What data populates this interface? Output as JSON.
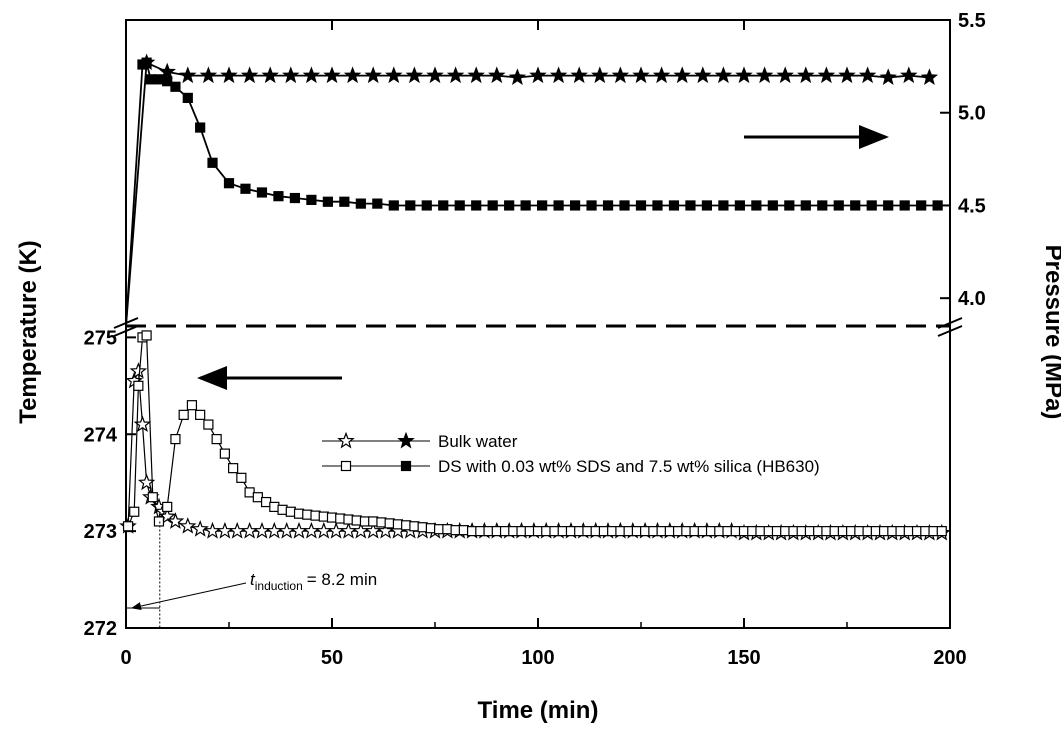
{
  "chart_data": {
    "type": "line",
    "xlabel": "Time (min)",
    "ylabel_left": "Temperature (K)",
    "ylabel_right": "Pressure (MPa)",
    "xlim": [
      0,
      200
    ],
    "x_ticks": [
      "0",
      "50",
      "100",
      "150",
      "200"
    ],
    "temperature_axis": {
      "range": [
        272,
        275.2
      ],
      "ticks": [
        "272",
        "273",
        "274",
        "275"
      ]
    },
    "pressure_axis": {
      "range": [
        3.85,
        5.5
      ],
      "ticks": [
        "4.0",
        "4.5",
        "5.0",
        "5.5"
      ]
    },
    "legend_position": "center-right",
    "legend": [
      {
        "label": "Bulk water"
      },
      {
        "label": "DS with 0.03 wt% SDS and 7.5 wt% silica (HB630)"
      }
    ],
    "series": [
      {
        "name": "Bulk water",
        "quantity": "temperature",
        "marker": "star-open",
        "x": [
          0.5,
          2,
          3,
          4,
          5,
          6,
          8,
          9,
          10,
          12,
          15,
          18,
          21,
          24,
          27,
          30,
          33,
          36,
          39,
          42,
          45,
          48,
          51,
          54,
          57,
          60,
          63,
          66,
          69,
          72,
          75,
          78,
          81,
          84,
          87,
          90,
          93,
          96,
          99,
          102,
          105,
          108,
          111,
          114,
          117,
          120,
          123,
          126,
          129,
          132,
          135,
          138,
          141,
          144,
          147,
          150,
          153,
          156,
          159,
          162,
          165,
          168,
          171,
          174,
          177,
          180,
          183,
          186,
          189,
          192,
          195,
          198
        ],
        "y": [
          273.05,
          274.55,
          274.65,
          274.1,
          273.5,
          273.35,
          273.25,
          273.2,
          273.15,
          273.1,
          273.05,
          273.02,
          273.0,
          273.0,
          273.0,
          273.0,
          273.0,
          273.0,
          273.0,
          273.0,
          273.0,
          273.0,
          273.0,
          273.0,
          273.0,
          273.0,
          273.0,
          273.0,
          273.0,
          273.0,
          273.0,
          273.0,
          273.0,
          273.0,
          273.0,
          273.0,
          273.0,
          273.0,
          273.0,
          273.0,
          273.0,
          273.0,
          273.0,
          273.0,
          273.0,
          273.0,
          273.0,
          273.0,
          273.0,
          273.0,
          273.0,
          273.0,
          273.0,
          273.0,
          273.0,
          272.98,
          272.98,
          272.98,
          272.98,
          272.98,
          272.98,
          272.98,
          272.98,
          272.98,
          272.98,
          272.98,
          272.98,
          272.98,
          272.98,
          272.98,
          272.98,
          272.98
        ]
      },
      {
        "name": "DS with 0.03 wt% SDS and 7.5 wt% silica (HB630)",
        "quantity": "temperature",
        "marker": "square-open",
        "x": [
          0.5,
          2,
          3,
          4,
          5,
          6.5,
          8,
          10,
          12,
          14,
          16,
          18,
          20,
          22,
          24,
          26,
          28,
          30,
          32,
          34,
          36,
          38,
          40,
          42,
          44,
          46,
          48,
          50,
          52,
          54,
          56,
          58,
          60,
          62,
          64,
          66,
          68,
          70,
          72,
          74,
          76,
          78,
          80,
          82,
          84,
          86,
          88,
          90,
          92,
          94,
          96,
          98,
          100,
          102,
          104,
          106,
          108,
          110,
          112,
          114,
          116,
          118,
          120,
          122,
          124,
          126,
          128,
          130,
          132,
          134,
          136,
          138,
          140,
          142,
          144,
          146,
          148,
          150,
          152,
          154,
          156,
          158,
          160,
          162,
          164,
          166,
          168,
          170,
          172,
          174,
          176,
          178,
          180,
          182,
          184,
          186,
          188,
          190,
          192,
          194,
          196,
          198
        ],
        "y": [
          273.05,
          273.2,
          274.5,
          275.0,
          275.02,
          273.35,
          273.1,
          273.25,
          273.95,
          274.2,
          274.3,
          274.2,
          274.1,
          273.95,
          273.8,
          273.65,
          273.55,
          273.4,
          273.35,
          273.3,
          273.25,
          273.22,
          273.2,
          273.18,
          273.17,
          273.16,
          273.15,
          273.14,
          273.13,
          273.12,
          273.11,
          273.1,
          273.1,
          273.09,
          273.08,
          273.07,
          273.06,
          273.05,
          273.04,
          273.03,
          273.02,
          273.02,
          273.01,
          273.01,
          273.0,
          273.0,
          273.0,
          273.0,
          273.0,
          273.0,
          273.0,
          273.0,
          273.0,
          273.0,
          273.0,
          273.0,
          273.0,
          273.0,
          273.0,
          273.0,
          273.0,
          273.0,
          273.0,
          273.0,
          273.0,
          273.0,
          273.0,
          273.0,
          273.0,
          273.0,
          273.0,
          273.0,
          273.0,
          273.0,
          273.0,
          273.0,
          273.0,
          273.0,
          273.0,
          273.0,
          273.0,
          273.0,
          273.0,
          273.0,
          273.0,
          273.0,
          273.0,
          273.0,
          273.0,
          273.0,
          273.0,
          273.0,
          273.0,
          273.0,
          273.0,
          273.0,
          273.0,
          273.0,
          273.0,
          273.0,
          273.0,
          273.0
        ]
      },
      {
        "name": "Bulk water",
        "quantity": "pressure",
        "marker": "star-filled",
        "x": [
          0,
          5,
          10,
          15,
          20,
          25,
          30,
          35,
          40,
          45,
          50,
          55,
          60,
          65,
          70,
          75,
          80,
          85,
          90,
          95,
          100,
          105,
          110,
          115,
          120,
          125,
          130,
          135,
          140,
          145,
          150,
          155,
          160,
          165,
          170,
          175,
          180,
          185,
          190,
          195
        ],
        "y": [
          3.85,
          5.27,
          5.22,
          5.2,
          5.2,
          5.2,
          5.2,
          5.2,
          5.2,
          5.2,
          5.2,
          5.2,
          5.2,
          5.2,
          5.2,
          5.2,
          5.2,
          5.2,
          5.2,
          5.19,
          5.2,
          5.2,
          5.2,
          5.2,
          5.2,
          5.2,
          5.2,
          5.2,
          5.2,
          5.2,
          5.2,
          5.2,
          5.2,
          5.2,
          5.2,
          5.2,
          5.2,
          5.19,
          5.2,
          5.19
        ]
      },
      {
        "name": "DS with 0.03 wt% SDS and 7.5 wt% silica (HB630)",
        "quantity": "pressure",
        "marker": "square-filled",
        "x": [
          0,
          4,
          5,
          6,
          8,
          10,
          12,
          15,
          18,
          21,
          25,
          29,
          33,
          37,
          41,
          45,
          49,
          53,
          57,
          61,
          65,
          69,
          73,
          77,
          81,
          85,
          89,
          93,
          97,
          101,
          105,
          109,
          113,
          117,
          121,
          125,
          129,
          133,
          137,
          141,
          145,
          149,
          153,
          157,
          161,
          165,
          169,
          173,
          177,
          181,
          185,
          189,
          193,
          197
        ],
        "y": [
          3.85,
          5.26,
          5.27,
          5.18,
          5.18,
          5.17,
          5.14,
          5.08,
          4.92,
          4.73,
          4.62,
          4.59,
          4.57,
          4.55,
          4.54,
          4.53,
          4.52,
          4.52,
          4.51,
          4.51,
          4.5,
          4.5,
          4.5,
          4.5,
          4.5,
          4.5,
          4.5,
          4.5,
          4.5,
          4.5,
          4.5,
          4.5,
          4.5,
          4.5,
          4.5,
          4.5,
          4.5,
          4.5,
          4.5,
          4.5,
          4.5,
          4.5,
          4.5,
          4.5,
          4.5,
          4.5,
          4.5,
          4.5,
          4.5,
          4.5,
          4.5,
          4.5,
          4.5,
          4.5
        ]
      }
    ],
    "annotations": {
      "induction": {
        "t_symbol": "t",
        "subscript": "induction",
        "value_text": "= 8.2 min",
        "time": 8.2
      }
    }
  }
}
